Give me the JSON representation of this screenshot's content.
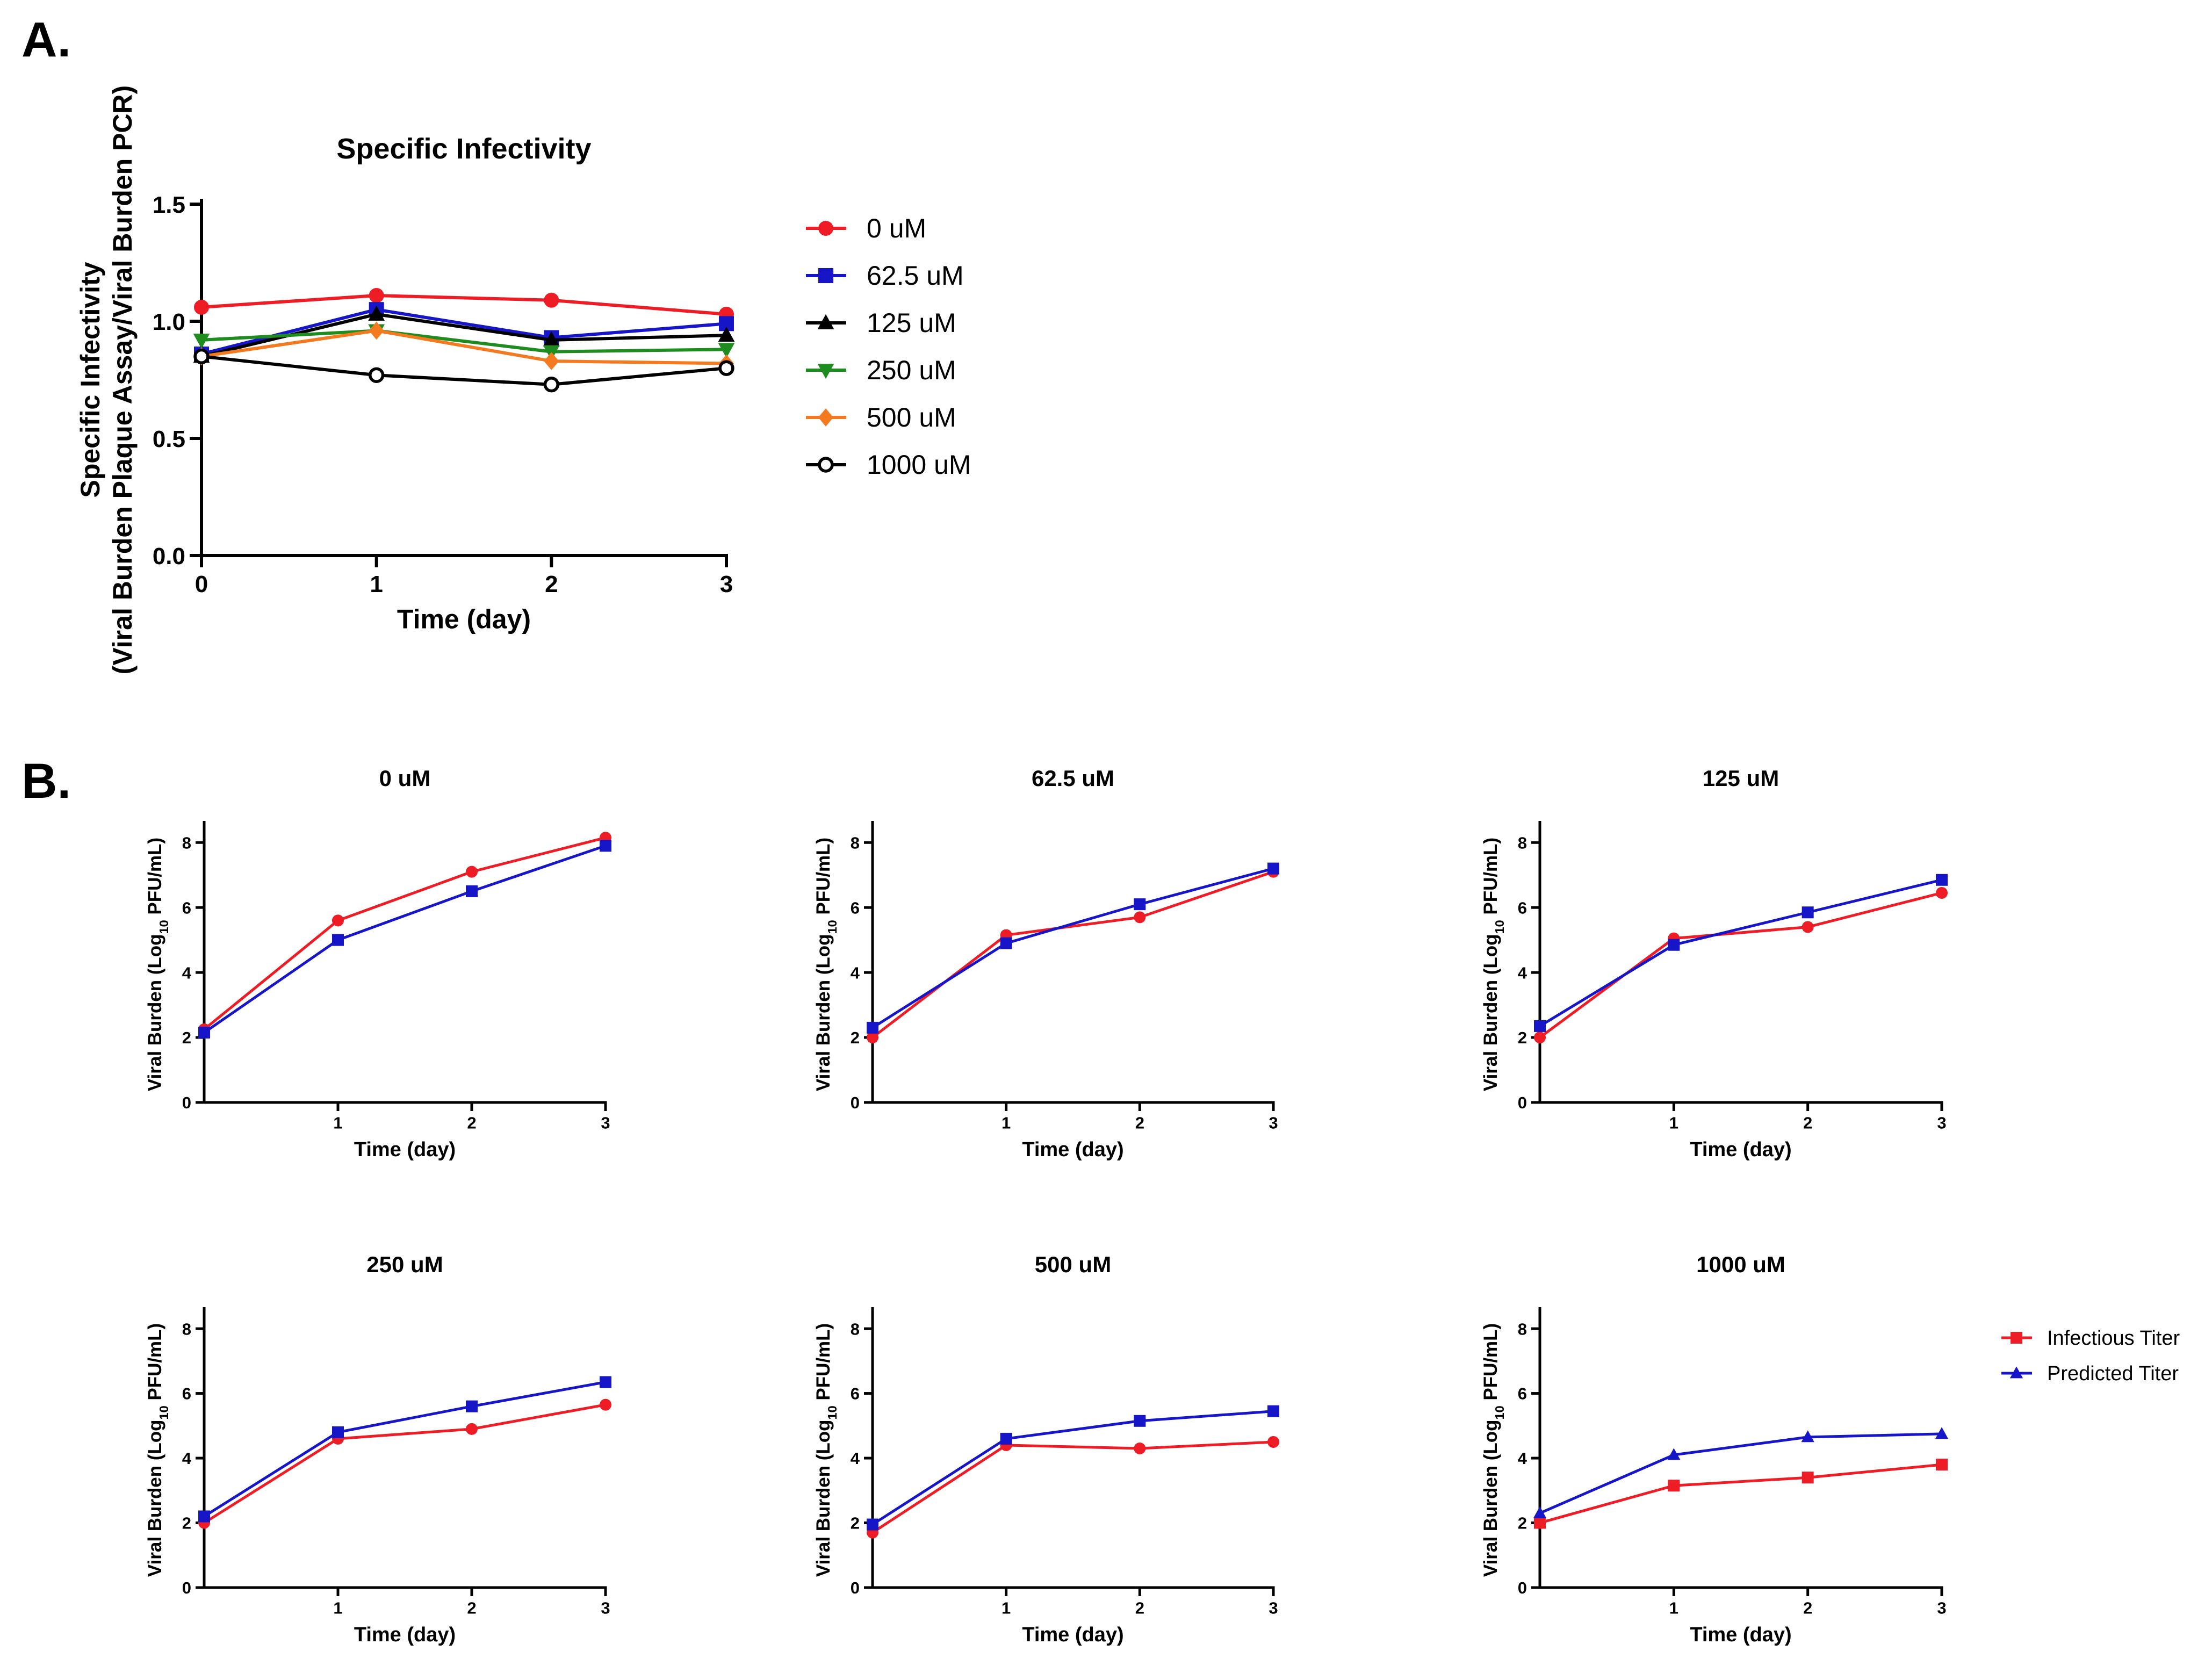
{
  "figure": {
    "panel_a_label": "A.",
    "panel_b_label": "B."
  },
  "colors": {
    "red": "#ee1c25",
    "blue": "#1616c8",
    "black": "#000000",
    "green": "#1e8c1e",
    "orange": "#f47a20"
  },
  "chart_data": [
    {
      "id": "A",
      "type": "line",
      "title": "Specific Infectivity",
      "xlabel": "Time (day)",
      "ylabel_lines": [
        "Specific Infectivity",
        "(Viral Burden Plaque Assay/Viral Burden PCR)"
      ],
      "x": [
        0,
        1,
        2,
        3
      ],
      "xlim": [
        0,
        3
      ],
      "ylim": [
        0,
        1.5
      ],
      "xticks": [
        0,
        1,
        2,
        3
      ],
      "yticks": [
        0.0,
        0.5,
        1.0,
        1.5
      ],
      "ytick_labels": [
        "0.0",
        "0.5",
        "1.0",
        "1.5"
      ],
      "legend_position": "right",
      "series": [
        {
          "name": "0 uM",
          "marker": "circle",
          "color": "#ee1c25",
          "values": [
            1.06,
            1.11,
            1.09,
            1.03
          ]
        },
        {
          "name": "62.5 uM",
          "marker": "square",
          "color": "#1616c8",
          "values": [
            0.86,
            1.05,
            0.93,
            0.99
          ]
        },
        {
          "name": "125 uM",
          "marker": "triangle-up",
          "color": "#000000",
          "values": [
            0.85,
            1.03,
            0.92,
            0.94
          ]
        },
        {
          "name": "250 uM",
          "marker": "triangle-down",
          "color": "#1e8c1e",
          "values": [
            0.92,
            0.96,
            0.87,
            0.88
          ]
        },
        {
          "name": "500 uM",
          "marker": "diamond",
          "color": "#f47a20",
          "values": [
            0.85,
            0.96,
            0.83,
            0.82
          ]
        },
        {
          "name": "1000 uM",
          "marker": "open-circle",
          "color": "#000000",
          "values": [
            0.85,
            0.77,
            0.73,
            0.8
          ]
        }
      ]
    },
    {
      "id": "B1",
      "type": "line",
      "title": "0 uM",
      "xlabel": "Time (day)",
      "ylabel": "Viral Burden (Log",
      "ylabel_sub": "10",
      "ylabel_end": " PFU/mL)",
      "x": [
        0,
        1,
        2,
        3
      ],
      "xlim": [
        0,
        3
      ],
      "ylim": [
        0,
        8.5
      ],
      "xticks": [
        1,
        2,
        3
      ],
      "yticks": [
        0,
        2,
        4,
        6,
        8
      ],
      "series": [
        {
          "name": "Infectious Titer",
          "marker": "circle",
          "color": "#ee1c25",
          "values": [
            2.25,
            5.6,
            7.1,
            8.15
          ]
        },
        {
          "name": "Predicted Titer",
          "marker": "square",
          "color": "#1616c8",
          "values": [
            2.15,
            5.0,
            6.5,
            7.9
          ]
        }
      ]
    },
    {
      "id": "B2",
      "type": "line",
      "title": "62.5 uM",
      "xlabel": "Time (day)",
      "ylabel": "Viral Burden (Log",
      "ylabel_sub": "10",
      "ylabel_end": " PFU/mL)",
      "x": [
        0,
        1,
        2,
        3
      ],
      "xlim": [
        0,
        3
      ],
      "ylim": [
        0,
        8.5
      ],
      "xticks": [
        1,
        2,
        3
      ],
      "yticks": [
        0,
        2,
        4,
        6,
        8
      ],
      "series": [
        {
          "name": "Infectious Titer",
          "marker": "circle",
          "color": "#ee1c25",
          "values": [
            2.0,
            5.15,
            5.7,
            7.1
          ]
        },
        {
          "name": "Predicted Titer",
          "marker": "square",
          "color": "#1616c8",
          "values": [
            2.3,
            4.9,
            6.1,
            7.2
          ]
        }
      ]
    },
    {
      "id": "B3",
      "type": "line",
      "title": "125 uM",
      "xlabel": "Time (day)",
      "ylabel": "Viral Burden (Log",
      "ylabel_sub": "10",
      "ylabel_end": " PFU/mL)",
      "x": [
        0,
        1,
        2,
        3
      ],
      "xlim": [
        0,
        3
      ],
      "ylim": [
        0,
        8.5
      ],
      "xticks": [
        1,
        2,
        3
      ],
      "yticks": [
        0,
        2,
        4,
        6,
        8
      ],
      "series": [
        {
          "name": "Infectious Titer",
          "marker": "circle",
          "color": "#ee1c25",
          "values": [
            2.0,
            5.05,
            5.4,
            6.45
          ]
        },
        {
          "name": "Predicted Titer",
          "marker": "square",
          "color": "#1616c8",
          "values": [
            2.35,
            4.85,
            5.85,
            6.85
          ]
        }
      ]
    },
    {
      "id": "B4",
      "type": "line",
      "title": "250 uM",
      "xlabel": "Time (day)",
      "ylabel": "Viral Burden (Log",
      "ylabel_sub": "10",
      "ylabel_end": " PFU/mL)",
      "x": [
        0,
        1,
        2,
        3
      ],
      "xlim": [
        0,
        3
      ],
      "ylim": [
        0,
        8.5
      ],
      "xticks": [
        1,
        2,
        3
      ],
      "yticks": [
        0,
        2,
        4,
        6,
        8
      ],
      "series": [
        {
          "name": "Infectious Titer",
          "marker": "circle",
          "color": "#ee1c25",
          "values": [
            2.0,
            4.6,
            4.9,
            5.65
          ]
        },
        {
          "name": "Predicted Titer",
          "marker": "square",
          "color": "#1616c8",
          "values": [
            2.2,
            4.8,
            5.6,
            6.35
          ]
        }
      ]
    },
    {
      "id": "B5",
      "type": "line",
      "title": "500 uM",
      "xlabel": "Time (day)",
      "ylabel": "Viral Burden (Log",
      "ylabel_sub": "10",
      "ylabel_end": " PFU/mL)",
      "x": [
        0,
        1,
        2,
        3
      ],
      "xlim": [
        0,
        3
      ],
      "ylim": [
        0,
        8.5
      ],
      "xticks": [
        1,
        2,
        3
      ],
      "yticks": [
        0,
        2,
        4,
        6,
        8
      ],
      "series": [
        {
          "name": "Infectious Titer",
          "marker": "circle",
          "color": "#ee1c25",
          "values": [
            1.7,
            4.4,
            4.3,
            4.5
          ]
        },
        {
          "name": "Predicted Titer",
          "marker": "square",
          "color": "#1616c8",
          "values": [
            1.95,
            4.6,
            5.15,
            5.45
          ]
        }
      ]
    },
    {
      "id": "B6",
      "type": "line",
      "title": "1000 uM",
      "xlabel": "Time (day)",
      "ylabel": "Viral Burden (Log",
      "ylabel_sub": "10",
      "ylabel_end": " PFU/mL)",
      "x": [
        0,
        1,
        2,
        3
      ],
      "xlim": [
        0,
        3
      ],
      "ylim": [
        0,
        8.5
      ],
      "xticks": [
        1,
        2,
        3
      ],
      "yticks": [
        0,
        2,
        4,
        6,
        8
      ],
      "legend_position": "right",
      "series": [
        {
          "name": "Infectious Titer",
          "marker": "square",
          "color": "#ee1c25",
          "values": [
            2.0,
            3.15,
            3.4,
            3.8
          ]
        },
        {
          "name": "Predicted Titer",
          "marker": "triangle-up",
          "color": "#1616c8",
          "values": [
            2.3,
            4.1,
            4.65,
            4.75
          ]
        }
      ]
    }
  ]
}
